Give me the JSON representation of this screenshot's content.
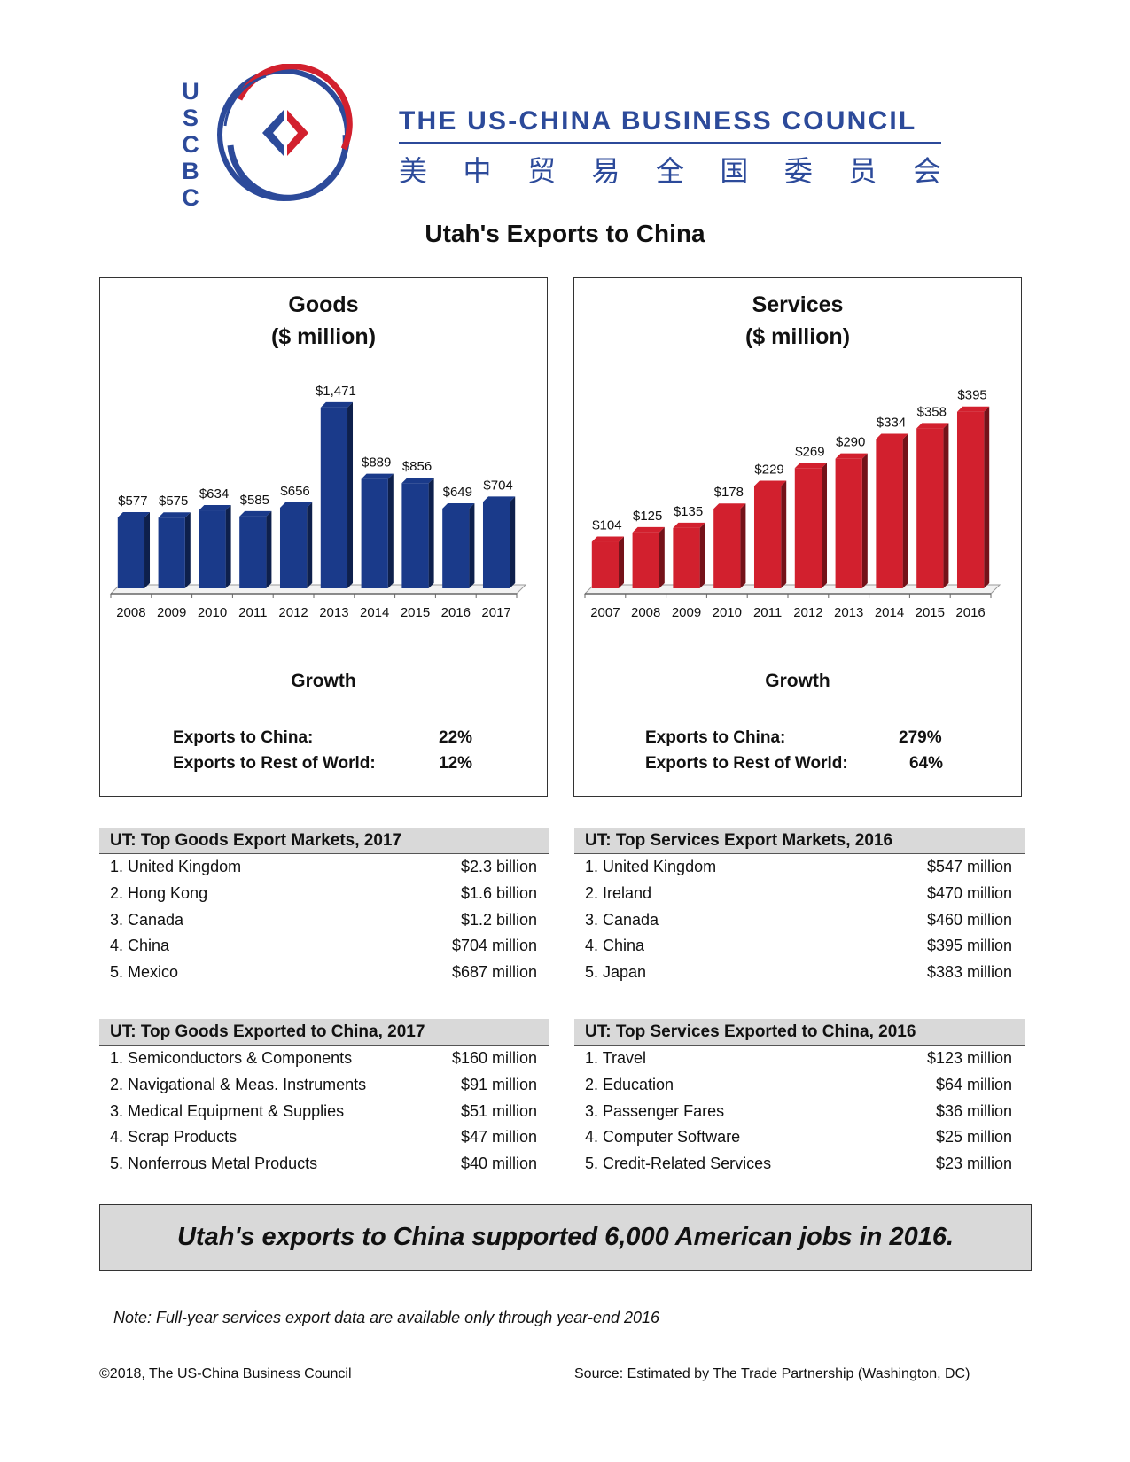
{
  "header": {
    "logo_letters": [
      "U",
      "S",
      "C",
      "B",
      "C"
    ],
    "org_name": "THE US-CHINA BUSINESS COUNCIL",
    "org_name_cn": [
      "美",
      "中",
      "贸",
      "易",
      "全",
      "国",
      "委",
      "员",
      "会"
    ],
    "page_title": "Utah's Exports to China"
  },
  "colors": {
    "goods_bar": "#1a3a8a",
    "services_bar": "#d2202e",
    "brand": "#2c4a9a"
  },
  "chart_data": [
    {
      "type": "bar",
      "title": "Goods",
      "subtitle": "($ million)",
      "categories": [
        "2008",
        "2009",
        "2010",
        "2011",
        "2012",
        "2013",
        "2014",
        "2015",
        "2016",
        "2017"
      ],
      "values": [
        577,
        575,
        634,
        585,
        656,
        1471,
        889,
        856,
        649,
        704
      ],
      "data_labels": [
        "$577",
        "$575",
        "$634",
        "$585",
        "$656",
        "$1,471",
        "$889",
        "$856",
        "$649",
        "$704"
      ],
      "ylim": [
        0,
        1600
      ],
      "grid": false,
      "legend": "none"
    },
    {
      "type": "bar",
      "title": "Services",
      "subtitle": "($ million)",
      "categories": [
        "2007",
        "2008",
        "2009",
        "2010",
        "2011",
        "2012",
        "2013",
        "2014",
        "2015",
        "2016"
      ],
      "values": [
        104,
        125,
        135,
        178,
        229,
        269,
        290,
        334,
        358,
        395
      ],
      "data_labels": [
        "$104",
        "$125",
        "$135",
        "$178",
        "$229",
        "$269",
        "$290",
        "$334",
        "$358",
        "$395"
      ],
      "ylim": [
        0,
        440
      ],
      "grid": false,
      "legend": "none"
    }
  ],
  "goods_growth": {
    "title": "Growth",
    "china_label": "Exports to China:",
    "china_value": "22%",
    "world_label": "Exports to Rest of World:",
    "world_value": "12%"
  },
  "services_growth": {
    "title": "Growth",
    "china_label": "Exports to China:",
    "china_value": "279%",
    "world_label": "Exports to Rest of World:",
    "world_value": "64%"
  },
  "tables": {
    "goods_markets": {
      "title": "UT: Top Goods Export Markets, 2017",
      "rows": [
        {
          "label": "1. United Kingdom",
          "value": "$2.3 billion"
        },
        {
          "label": "2. Hong Kong",
          "value": "$1.6 billion"
        },
        {
          "label": "3. Canada",
          "value": "$1.2 billion"
        },
        {
          "label": "4. China",
          "value": "$704 million"
        },
        {
          "label": "5. Mexico",
          "value": "$687 million"
        }
      ]
    },
    "services_markets": {
      "title": "UT: Top Services Export Markets, 2016",
      "rows": [
        {
          "label": "1. United Kingdom",
          "value": "$547 million"
        },
        {
          "label": "2. Ireland",
          "value": "$470 million"
        },
        {
          "label": "3. Canada",
          "value": "$460 million"
        },
        {
          "label": "4. China",
          "value": "$395 million"
        },
        {
          "label": "5. Japan",
          "value": "$383 million"
        }
      ]
    },
    "goods_to_china": {
      "title": "UT: Top Goods Exported to China, 2017",
      "rows": [
        {
          "label": "1. Semiconductors & Components",
          "value": "$160 million"
        },
        {
          "label": "2. Navigational & Meas. Instruments",
          "value": "$91 million"
        },
        {
          "label": "3. Medical Equipment & Supplies",
          "value": "$51 million"
        },
        {
          "label": "4. Scrap Products",
          "value": "$47 million"
        },
        {
          "label": "5. Nonferrous Metal Products",
          "value": "$40 million"
        }
      ]
    },
    "services_to_china": {
      "title": "UT: Top Services Exported to China, 2016",
      "rows": [
        {
          "label": "1. Travel",
          "value": "$123 million"
        },
        {
          "label": "2. Education",
          "value": "$64 million"
        },
        {
          "label": "3. Passenger Fares",
          "value": "$36 million"
        },
        {
          "label": "4. Computer Software",
          "value": "$25 million"
        },
        {
          "label": "5. Credit-Related Services",
          "value": "$23 million"
        }
      ]
    }
  },
  "banner": "Utah's exports to China supported 6,000 American jobs in 2016.",
  "note": "Note: Full-year services export data are available only through year-end 2016",
  "footer": {
    "copyright": "©2018, The US-China Business Council",
    "source": "Source: Estimated by The Trade Partnership (Washington, DC)"
  }
}
